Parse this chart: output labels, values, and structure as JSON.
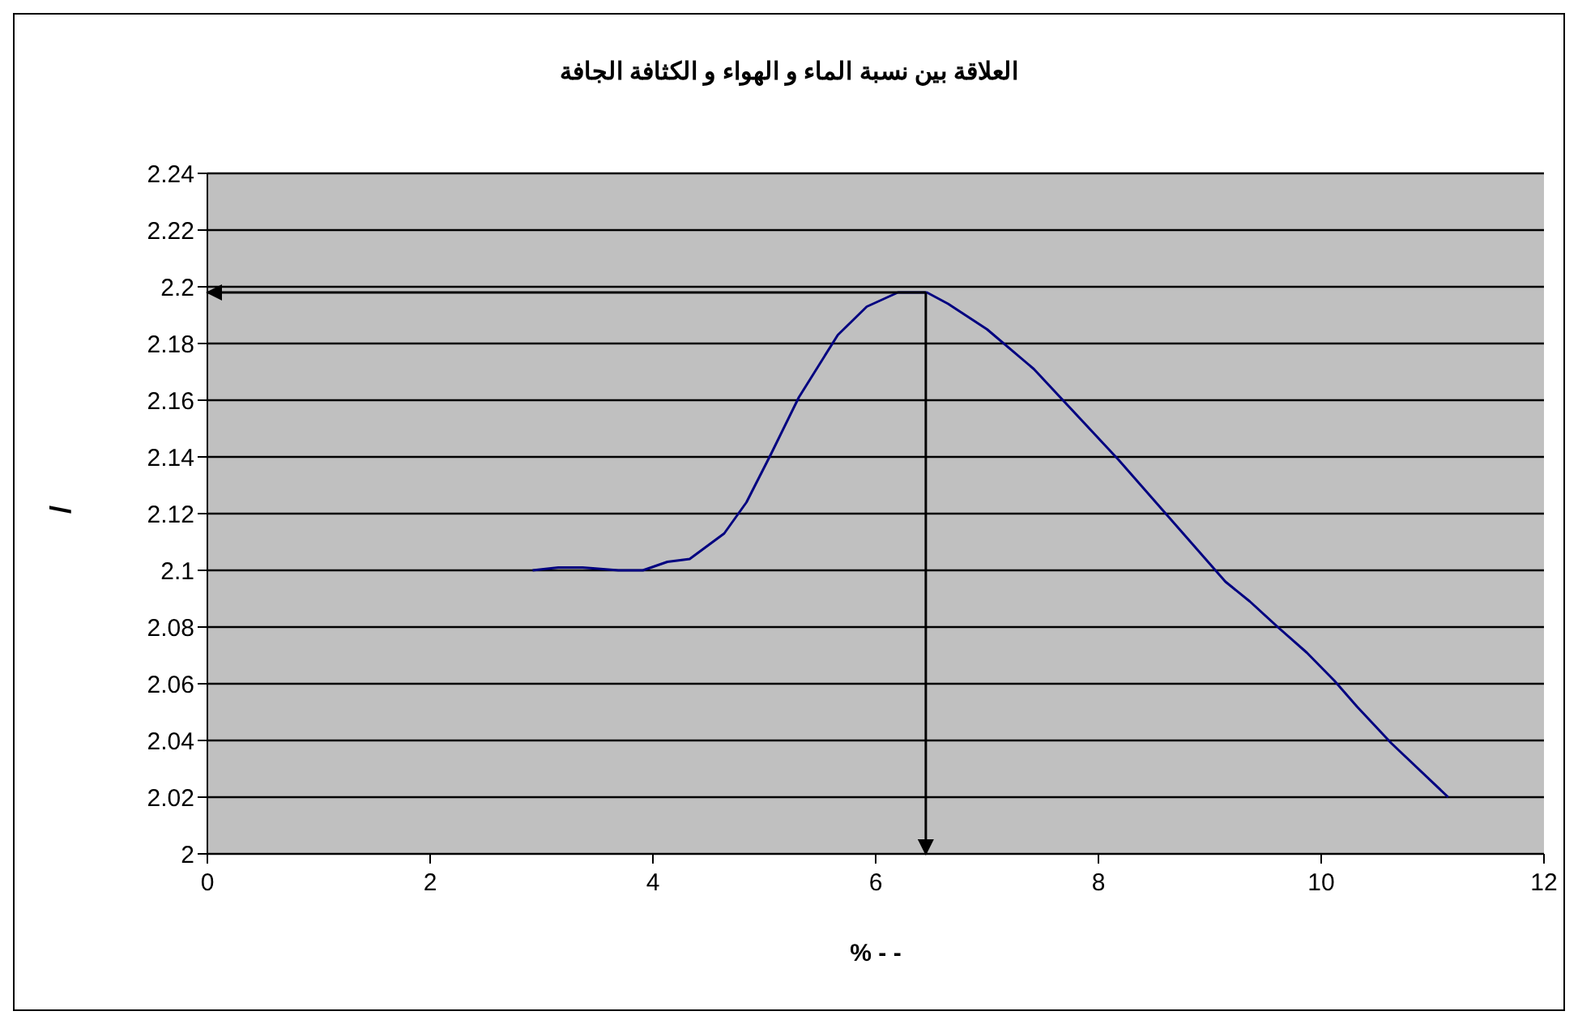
{
  "chart_data": {
    "type": "line",
    "title": "العلاقة بين نسبة الماء و الهواء و الكثافة الجافة",
    "xlabel": "% -       -",
    "ylabel": "/",
    "x": [
      2.92,
      3.15,
      3.37,
      3.69,
      3.91,
      4.13,
      4.33,
      4.64,
      4.84,
      5.06,
      5.31,
      5.66,
      5.92,
      6.2,
      6.46,
      6.65,
      7.0,
      7.42,
      8.18,
      9.14,
      9.36,
      9.61,
      9.87,
      10.12,
      10.32,
      10.63,
      11.14
    ],
    "series": [
      {
        "color": "#000080",
        "values": [
          2.1,
          2.101,
          2.101,
          2.1,
          2.1,
          2.103,
          2.104,
          2.113,
          2.124,
          2.141,
          2.161,
          2.183,
          2.193,
          2.198,
          2.198,
          2.194,
          2.185,
          2.171,
          2.139,
          2.096,
          2.089,
          2.08,
          2.071,
          2.061,
          2.052,
          2.039,
          2.02
        ]
      }
    ],
    "xlim": [
      0,
      12
    ],
    "xticks": [
      0,
      2,
      4,
      6,
      8,
      10,
      12
    ],
    "ylim": [
      2,
      2.24
    ],
    "yticks": [
      2,
      2.02,
      2.04,
      2.06,
      2.08,
      2.1,
      2.12,
      2.14,
      2.16,
      2.18,
      2.2,
      2.22,
      2.24
    ],
    "grid": "y",
    "marker": "none",
    "line_style": "solid",
    "ref_lines": [
      {
        "axis": "y",
        "value": 2.198,
        "color": "#000000"
      },
      {
        "axis": "x",
        "value": 6.45,
        "color": "#000000"
      }
    ]
  }
}
